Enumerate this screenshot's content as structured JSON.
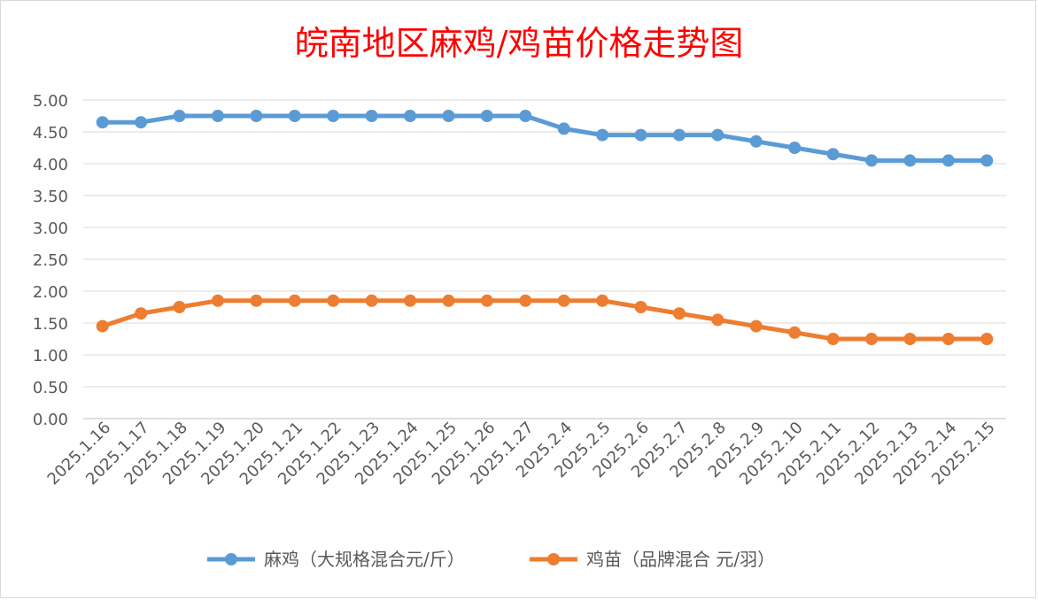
{
  "chart_data": {
    "type": "line",
    "title": "皖南地区麻鸡/鸡苗价格走势图",
    "xlabel": "",
    "ylabel": "",
    "ylim": [
      0,
      5
    ],
    "yticks": [
      "0.00",
      "0.50",
      "1.00",
      "1.50",
      "2.00",
      "2.50",
      "3.00",
      "3.50",
      "4.00",
      "4.50",
      "5.00"
    ],
    "categories": [
      "2025.1.16",
      "2025.1.17",
      "2025.1.18",
      "2025.1.19",
      "2025.1.20",
      "2025.1.21",
      "2025.1.22",
      "2025.1.23",
      "2025.1.24",
      "2025.1.25",
      "2025.1.26",
      "2025.1.27",
      "2025.2.4",
      "2025.2.5",
      "2025.2.6",
      "2025.2.7",
      "2025.2.8",
      "2025.2.9",
      "2025.2.10",
      "2025.2.11",
      "2025.2.12",
      "2025.2.13",
      "2025.2.14",
      "2025.2.15"
    ],
    "series": [
      {
        "name": "麻鸡（大规格混合元/斤）",
        "color": "#5b9bd5",
        "values": [
          4.65,
          4.65,
          4.75,
          4.75,
          4.75,
          4.75,
          4.75,
          4.75,
          4.75,
          4.75,
          4.75,
          4.75,
          4.55,
          4.45,
          4.45,
          4.45,
          4.45,
          4.35,
          4.25,
          4.15,
          4.05,
          4.05,
          4.05,
          4.05
        ]
      },
      {
        "name": "鸡苗（品牌混合 元/羽）",
        "color": "#ed7d31",
        "values": [
          1.45,
          1.65,
          1.75,
          1.85,
          1.85,
          1.85,
          1.85,
          1.85,
          1.85,
          1.85,
          1.85,
          1.85,
          1.85,
          1.85,
          1.75,
          1.65,
          1.55,
          1.45,
          1.35,
          1.25,
          1.25,
          1.25,
          1.25,
          1.25
        ]
      }
    ],
    "grid": true,
    "legend": "bottom"
  }
}
